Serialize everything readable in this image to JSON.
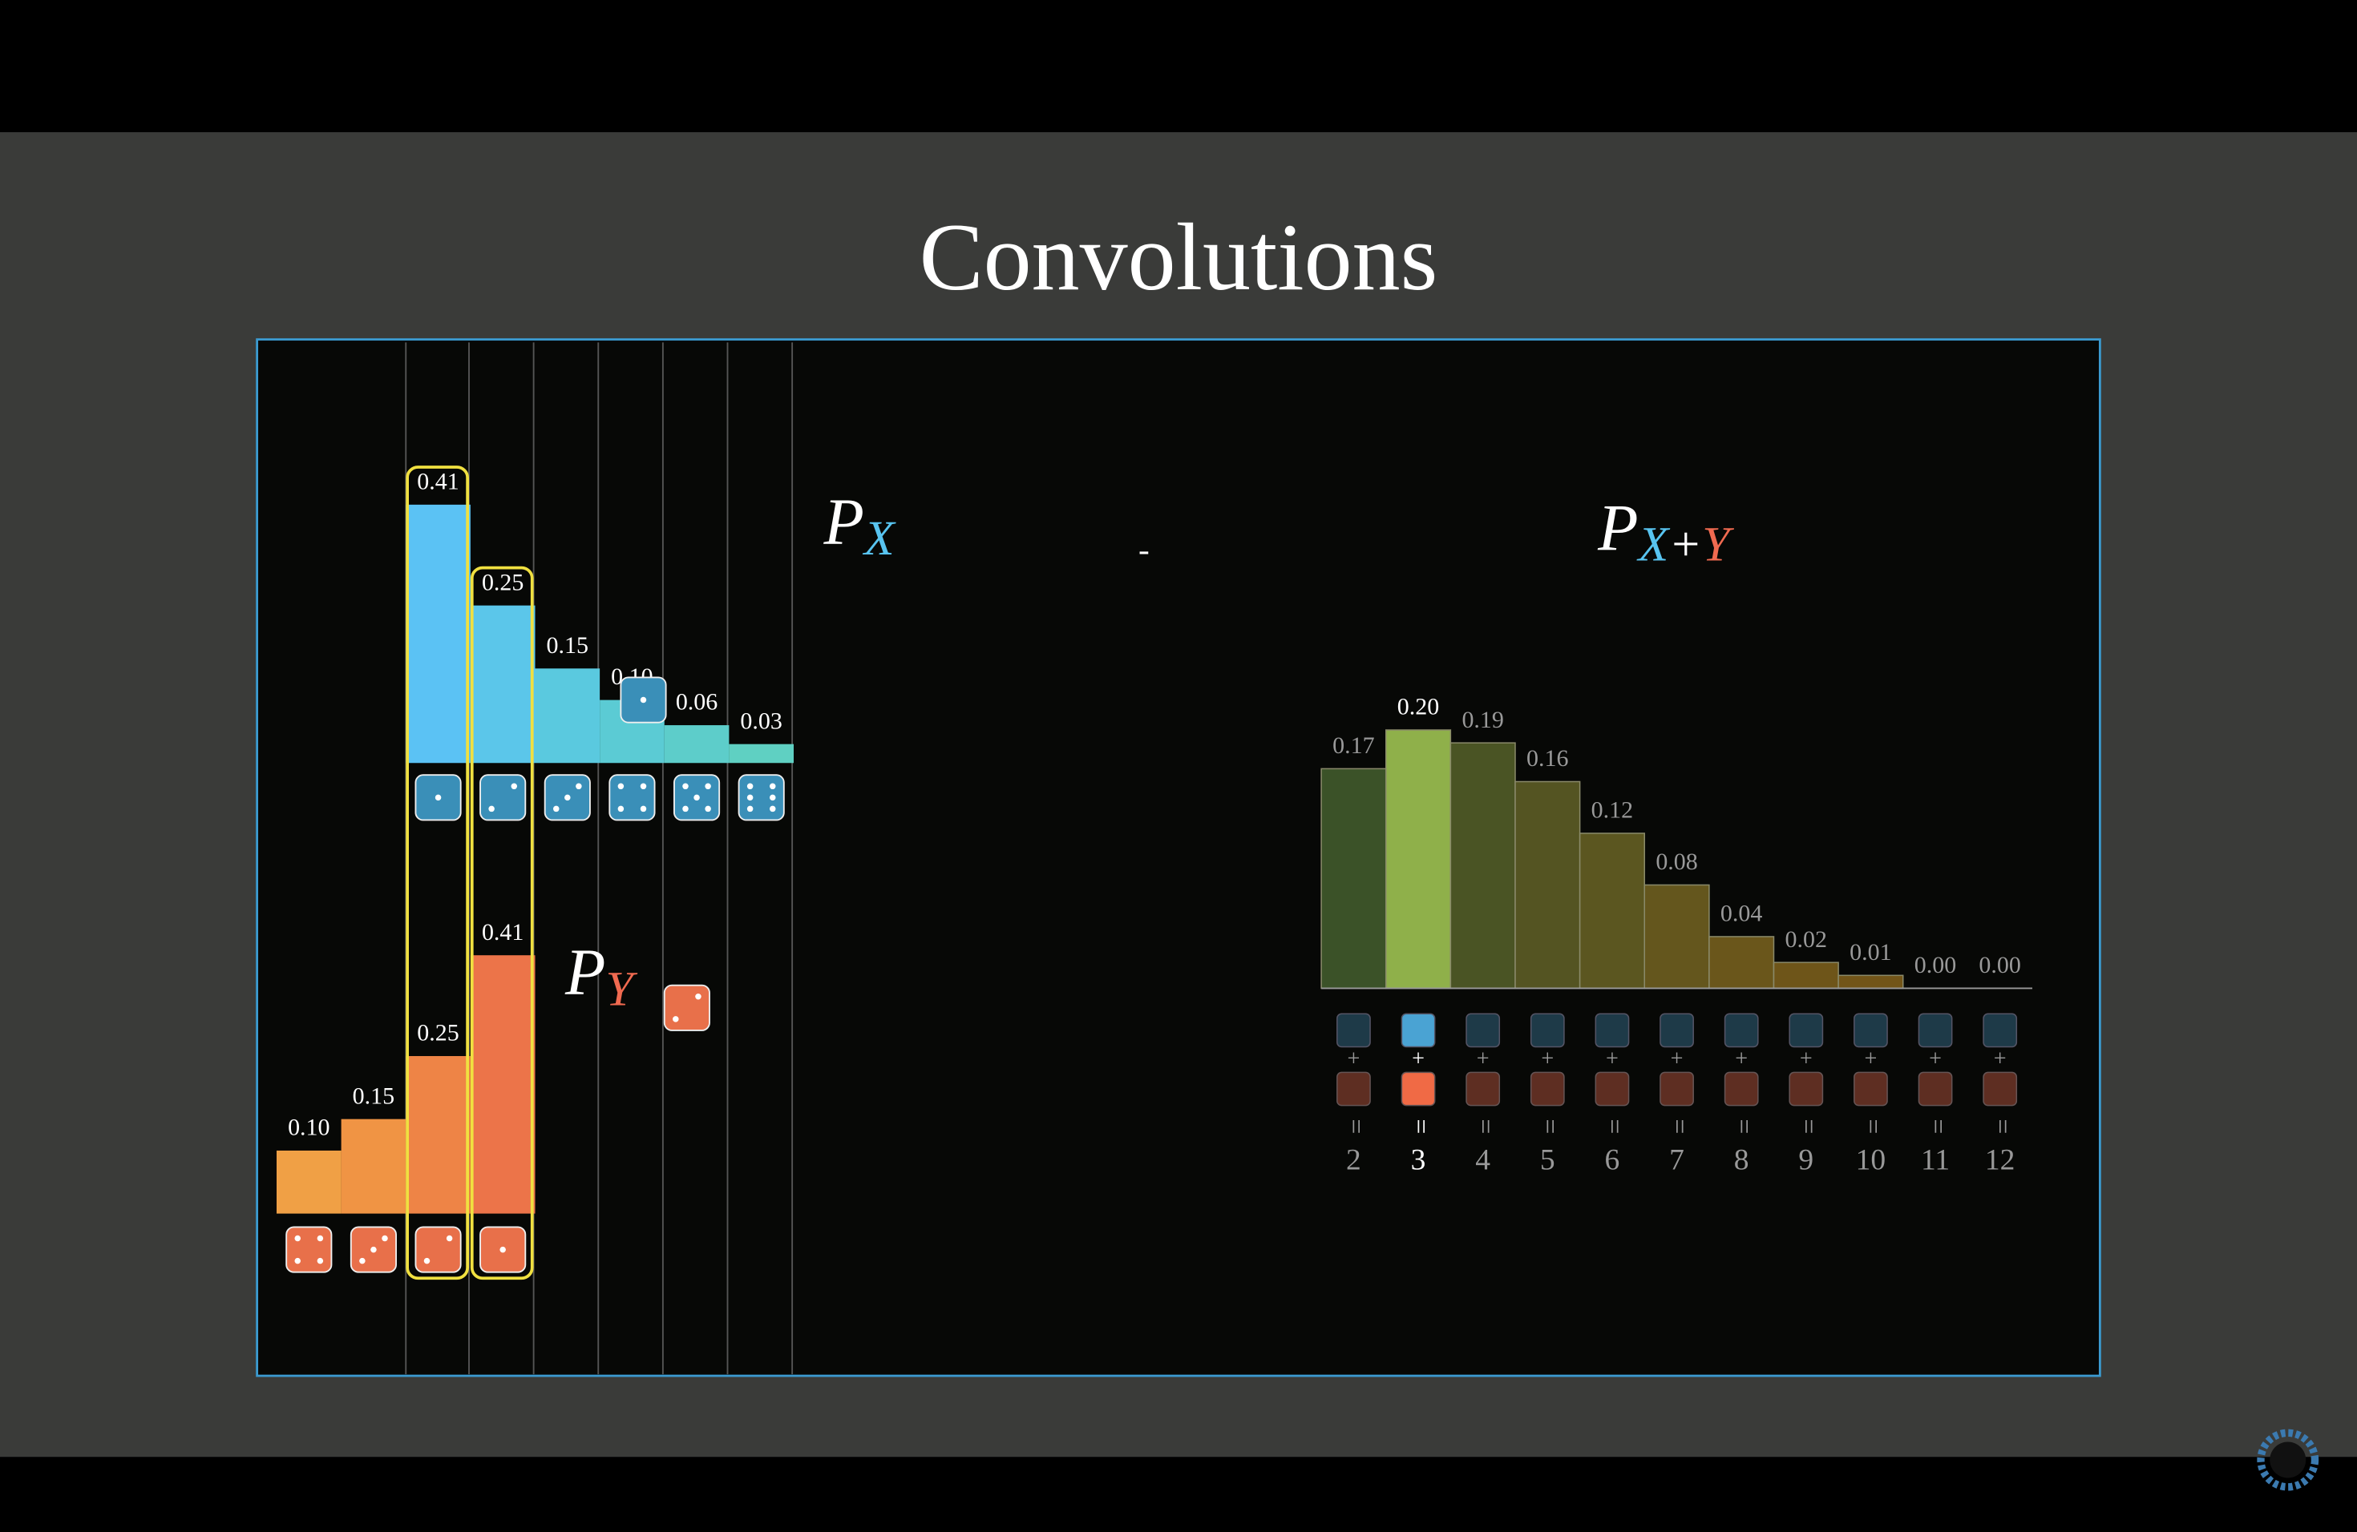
{
  "title": "Convolutions",
  "annotation": "-",
  "chart_data": [
    {
      "type": "bar",
      "label": "P",
      "subscript": [
        "X"
      ],
      "subscript_colors": [
        "#58c4f0"
      ],
      "categories": [
        null,
        null,
        null,
        null,
        null,
        null
      ],
      "values": [
        0.41,
        0.25,
        0.15,
        0.1,
        0.06,
        0.03
      ],
      "value_labels": [
        "0.41",
        "0.25",
        "0.15",
        "0.10",
        "0.06",
        "0.03"
      ],
      "colors": [
        "#5bc2f4",
        "#5bc6ea",
        "#5ac9df",
        "#5bcbd4",
        "#5dcdca",
        "#5fd0c2"
      ]
    },
    {
      "type": "bar",
      "label": "P",
      "subscript": [
        "Y"
      ],
      "subscript_colors": [
        "#f06a50"
      ],
      "categories": [
        null,
        null,
        null,
        null
      ],
      "values": [
        0.1,
        0.15,
        0.25,
        0.41
      ],
      "value_labels": [
        "0.10",
        "0.15",
        "0.25",
        "0.41"
      ],
      "colors": [
        "#f0a045",
        "#f09444",
        "#ee8446",
        "#ec7449"
      ]
    },
    {
      "type": "bar",
      "label": "P",
      "subscript": [
        "X",
        "+",
        "Y"
      ],
      "subscript_colors": [
        "#58c4f0",
        "#ffffff",
        "#f06a50"
      ],
      "categories": [
        "2",
        "3",
        "4",
        "5",
        "6",
        "7",
        "8",
        "9",
        "10",
        "11",
        "12"
      ],
      "values": [
        0.17,
        0.2,
        0.19,
        0.16,
        0.12,
        0.08,
        0.04,
        0.02,
        0.01,
        0.0,
        0.0
      ],
      "value_labels": [
        "0.17",
        "0.20",
        "0.19",
        "0.16",
        "0.12",
        "0.08",
        "0.04",
        "0.02",
        "0.01",
        "0.00",
        "0.00"
      ],
      "colors": [
        "#3b5228",
        "#8fb04a",
        "#4a5424",
        "#545422",
        "#5b5620",
        "#64561d",
        "#6a561b",
        "#6e5519",
        "#725518",
        "#745417",
        "#765416"
      ],
      "highlight_index": 1,
      "operator": "+",
      "equals": "="
    }
  ]
}
